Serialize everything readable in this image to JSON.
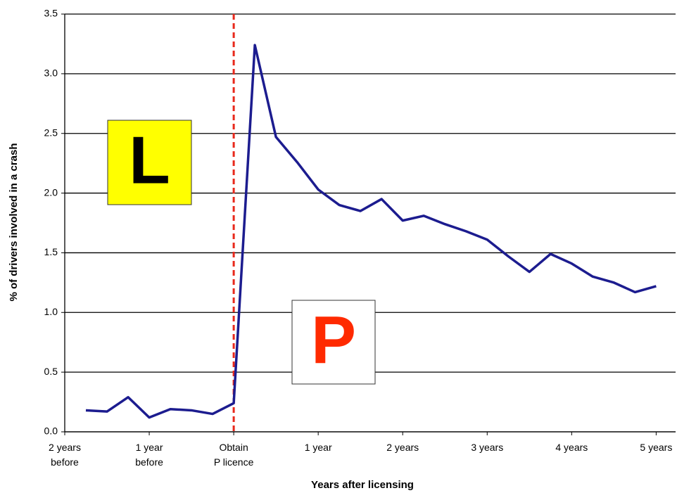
{
  "chart_data": {
    "type": "line",
    "x_label": "Years after licensing",
    "y_label": "% of drivers involved in a crash",
    "x": [
      -1.75,
      -1.5,
      -1.25,
      -1.0,
      -0.75,
      -0.5,
      -0.25,
      0,
      0.25,
      0.5,
      0.75,
      1.0,
      1.25,
      1.5,
      1.75,
      2.0,
      2.25,
      2.5,
      2.75,
      3.0,
      3.25,
      3.5,
      3.75,
      4.0,
      4.25,
      4.5,
      4.75,
      5.0
    ],
    "series": [
      {
        "color": "#1c1c8f",
        "values": [
          0.18,
          0.17,
          0.29,
          0.12,
          0.19,
          0.18,
          0.15,
          0.24,
          3.24,
          2.47,
          2.26,
          2.03,
          1.9,
          1.85,
          1.95,
          1.77,
          1.81,
          1.74,
          1.68,
          1.61,
          1.47,
          1.34,
          1.49,
          1.41,
          1.3,
          1.25,
          1.17,
          1.22
        ]
      }
    ],
    "xlim": [
      -2,
      5.23
    ],
    "xticks": [
      {
        "value": -2,
        "label": "2 years\nbefore"
      },
      {
        "value": -1,
        "label": "1 year\nbefore"
      },
      {
        "value": 0,
        "label": "Obtain\nP licence"
      },
      {
        "value": 1,
        "label": "1 year"
      },
      {
        "value": 2,
        "label": "2 years"
      },
      {
        "value": 3,
        "label": "3 years"
      },
      {
        "value": 4,
        "label": "4 years"
      },
      {
        "value": 5,
        "label": "5 years"
      }
    ],
    "ylim": [
      0,
      3.5
    ],
    "yticks": [
      {
        "value": 0,
        "label": "0.0"
      },
      0.5,
      {
        "value": 1,
        "label": "1.0"
      },
      1.5,
      {
        "value": 2,
        "label": "2.0"
      },
      2.5,
      {
        "value": 3,
        "label": "3.0"
      },
      3.5
    ],
    "grid": true,
    "vline": {
      "x": 0,
      "color": "#e8291c"
    },
    "annotations": [
      {
        "text": "L",
        "color": "#000000",
        "background": "#ffff00"
      },
      {
        "text": "P",
        "color": "#ff2a00",
        "background": "#ffffff"
      }
    ]
  }
}
